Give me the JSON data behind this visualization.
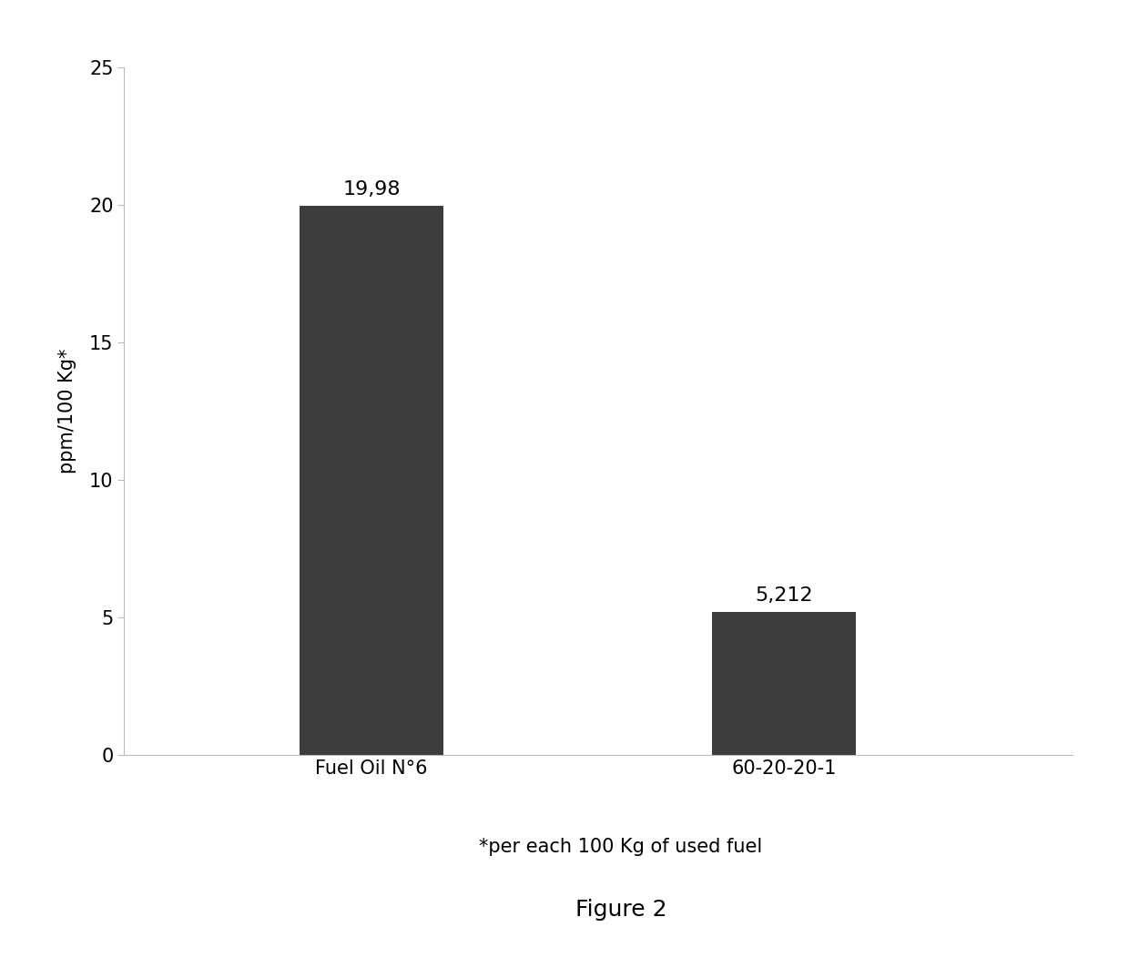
{
  "categories": [
    "Fuel Oil N°6",
    "60-20-20-1"
  ],
  "values": [
    19.98,
    5.212
  ],
  "bar_labels": [
    "19,98",
    "5,212"
  ],
  "bar_color": "#3d3d3d",
  "ylim": [
    0,
    25
  ],
  "yticks": [
    0,
    5,
    10,
    15,
    20,
    25
  ],
  "ylabel": "ppm/100 Kg*",
  "xlabel": "*per each 100 Kg of used fuel",
  "figure_label": "Figure 2",
  "background_color": "#ffffff",
  "bar_width": 0.35,
  "label_fontsize": 15,
  "tick_fontsize": 15,
  "annot_fontsize": 16,
  "fig_label_fontsize": 18
}
